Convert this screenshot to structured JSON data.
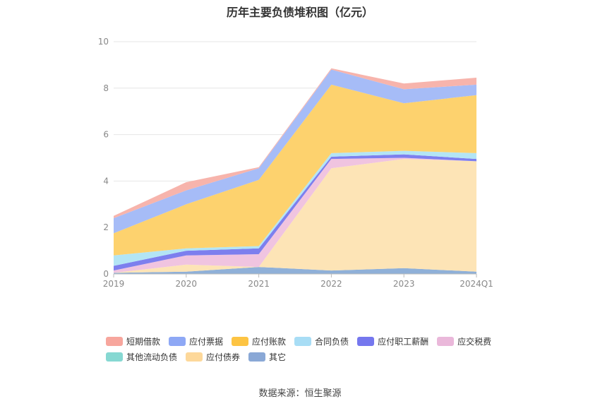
{
  "title": "历年主要负债堆积图（亿元）",
  "source": "数据来源：恒生聚源",
  "chart_data": {
    "type": "area",
    "stacked": true,
    "title": "历年主要负债堆积图（亿元）",
    "categories": [
      "2019",
      "2020",
      "2021",
      "2022",
      "2023",
      "2024Q1"
    ],
    "ylim": [
      0,
      10
    ],
    "yticks": [
      0,
      2,
      4,
      6,
      8,
      10
    ],
    "grid": true,
    "legend_position": "bottom",
    "series": [
      {
        "name": "其它",
        "color": "#8fb0d8",
        "values": [
          0.05,
          0.1,
          0.3,
          0.15,
          0.25,
          0.1
        ]
      },
      {
        "name": "应付债券",
        "color": "#fde4b6",
        "values": [
          0.0,
          0.3,
          0.0,
          4.4,
          4.7,
          4.75
        ]
      },
      {
        "name": "其他流动负债",
        "color": "#8fd8d3",
        "values": [
          0.0,
          0.0,
          0.0,
          0.0,
          0.0,
          0.0
        ]
      },
      {
        "name": "应交税费",
        "color": "#f0c4e0",
        "values": [
          0.1,
          0.4,
          0.55,
          0.4,
          0.05,
          0.0
        ]
      },
      {
        "name": "应付职工薪酬",
        "color": "#7d7fee",
        "values": [
          0.2,
          0.2,
          0.25,
          0.1,
          0.15,
          0.1
        ]
      },
      {
        "name": "合同负债",
        "color": "#b3e5f5",
        "values": [
          0.45,
          0.1,
          0.1,
          0.15,
          0.15,
          0.25
        ]
      },
      {
        "name": "应付账款",
        "color": "#fdd26e",
        "values": [
          0.95,
          1.9,
          2.85,
          2.95,
          2.05,
          2.5
        ]
      },
      {
        "name": "应付票据",
        "color": "#a6bcf7",
        "values": [
          0.65,
          0.6,
          0.5,
          0.65,
          0.6,
          0.45
        ]
      },
      {
        "name": "短期借款",
        "color": "#f7b4ac",
        "values": [
          0.1,
          0.35,
          0.05,
          0.05,
          0.25,
          0.3
        ]
      }
    ],
    "legend_order": [
      "短期借款",
      "应付票据",
      "应付账款",
      "合同负债",
      "应付职工薪酬",
      "应交税费",
      "其他流动负债",
      "应付债券",
      "其它"
    ],
    "legend_colors": [
      "#f7a69d",
      "#8ea8f5",
      "#fdc443",
      "#a8ddf5",
      "#7577ee",
      "#eab8da",
      "#86d8d2",
      "#fdd89a",
      "#8aa8d6"
    ]
  }
}
